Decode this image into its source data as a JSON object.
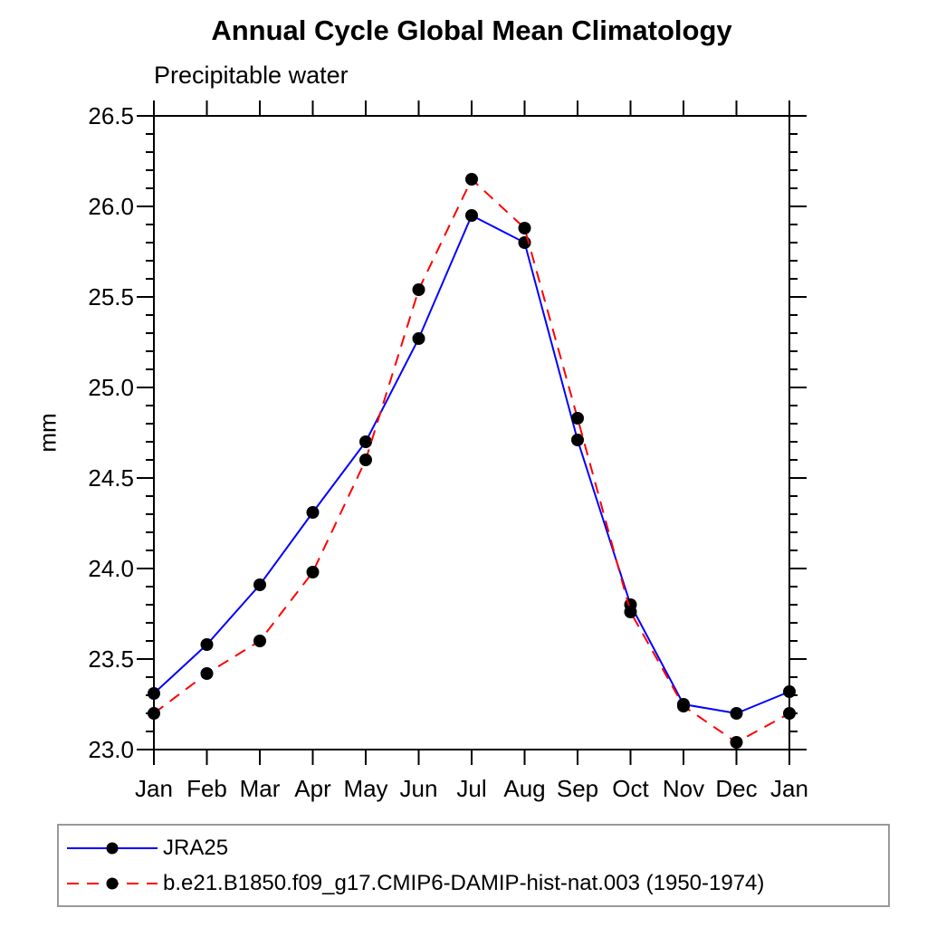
{
  "page": {
    "background": "#ffffff"
  },
  "colors": {
    "axis": "#000000",
    "marker": "#000000",
    "series_blue": "#0000ff",
    "series_red": "#ff0000",
    "legend_border": "#999999"
  },
  "chart_data": {
    "type": "line",
    "title": "Annual Cycle Global Mean Climatology",
    "subtitle": "Precipitable water",
    "ylabel": "mm",
    "xlabel": "",
    "categories": [
      "Jan",
      "Feb",
      "Mar",
      "Apr",
      "May",
      "Jun",
      "Jul",
      "Aug",
      "Sep",
      "Oct",
      "Nov",
      "Dec",
      "Jan"
    ],
    "ylim": [
      23.0,
      26.5
    ],
    "ytick_major_step": 0.5,
    "ytick_minor_step": 0.1,
    "ytick_labels": [
      "23.0",
      "23.5",
      "24.0",
      "24.5",
      "25.0",
      "25.5",
      "26.0",
      "26.5"
    ],
    "grid": false,
    "legend_position": "bottom-left-box",
    "marker": {
      "shape": "circle",
      "color": "#000000"
    },
    "series": [
      {
        "name": "JRA25",
        "color": "#0000ff",
        "style": "solid",
        "values": [
          23.31,
          23.58,
          23.91,
          24.31,
          24.7,
          25.27,
          25.95,
          25.8,
          24.71,
          23.8,
          23.25,
          23.2,
          23.32
        ]
      },
      {
        "name": "b.e21.B1850.f09_g17.CMIP6-DAMIP-hist-nat.003 (1950-1974)",
        "color": "#ff0000",
        "style": "dashed",
        "values": [
          23.2,
          23.42,
          23.6,
          23.98,
          24.6,
          25.54,
          26.15,
          25.88,
          24.83,
          23.76,
          23.24,
          23.04,
          23.2
        ]
      }
    ]
  }
}
